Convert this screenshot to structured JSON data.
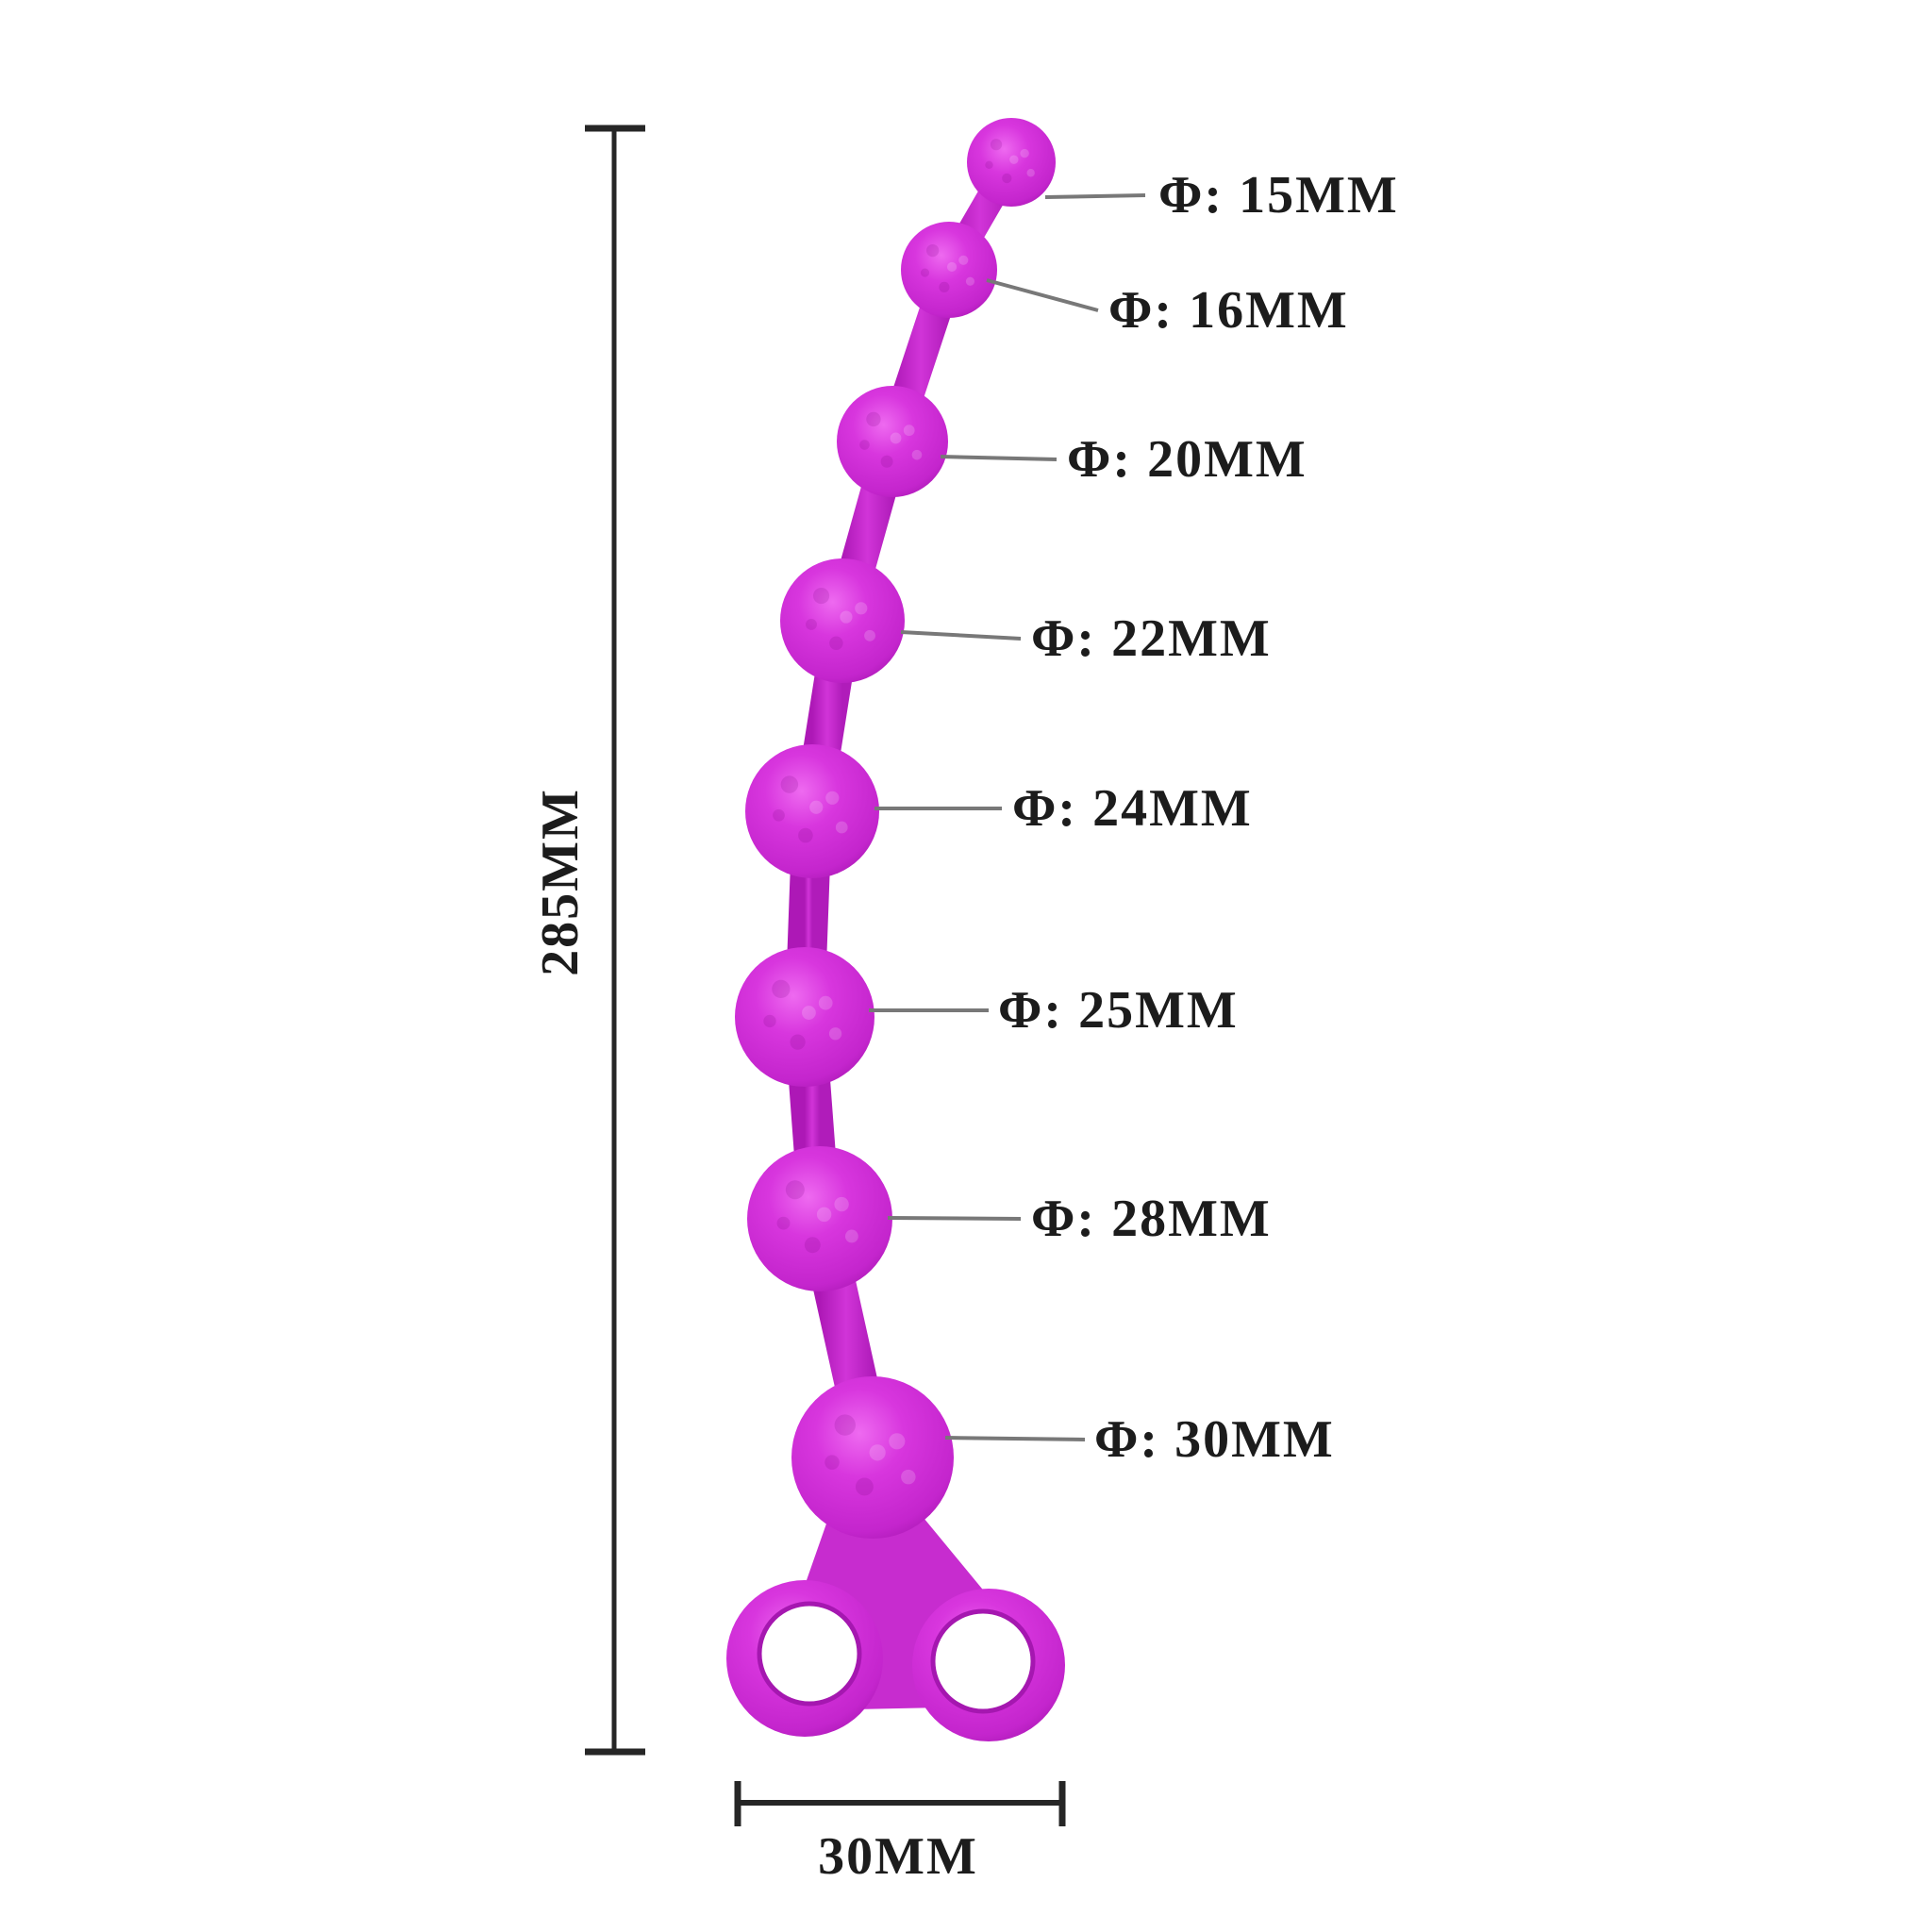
{
  "diagram": {
    "background_color": "#ffffff",
    "product_color": "#cc2bd4",
    "product_highlight_color": "#ee6af0",
    "product_shadow_color": "#a014ab",
    "label_text_color": "#1c1c1c",
    "leader_line_color": "#787878",
    "dimension_line_color": "#262626",
    "beads": [
      {
        "label": "Φ: 15MM",
        "diameter_mm": 15
      },
      {
        "label": "Φ: 16MM",
        "diameter_mm": 16
      },
      {
        "label": "Φ: 20MM",
        "diameter_mm": 20
      },
      {
        "label": "Φ: 22MM",
        "diameter_mm": 22
      },
      {
        "label": "Φ: 24MM",
        "diameter_mm": 24
      },
      {
        "label": "Φ: 25MM",
        "diameter_mm": 25
      },
      {
        "label": "Φ: 28MM",
        "diameter_mm": 28
      },
      {
        "label": "Φ: 30MM",
        "diameter_mm": 30
      }
    ],
    "overall_length": {
      "label": "285MM",
      "value_mm": 285
    },
    "handle_width": {
      "label": "30MM",
      "value_mm": 30
    }
  }
}
